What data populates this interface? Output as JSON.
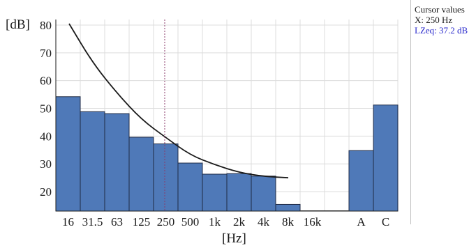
{
  "chart_data": {
    "type": "bar",
    "ylabel": "[dB]",
    "xlabel": "[Hz]",
    "ylim": [
      13,
      82
    ],
    "yticks": [
      20,
      30,
      40,
      50,
      60,
      70,
      80
    ],
    "grid": true,
    "categories": [
      "16",
      "31.5",
      "63",
      "125",
      "250",
      "500",
      "1k",
      "2k",
      "4k",
      "8k",
      "16k",
      "",
      "A",
      "C"
    ],
    "values": [
      54.2,
      48.8,
      48.1,
      39.6,
      37.2,
      30.3,
      26.3,
      26.5,
      25.6,
      15.4,
      null,
      null,
      34.8,
      51.2
    ],
    "curve": {
      "categories": [
        "16",
        "31.5",
        "63",
        "125",
        "250",
        "500",
        "1k",
        "2k",
        "4k",
        "8k"
      ],
      "values": [
        80.5,
        66.5,
        55.5,
        46,
        39.5,
        33.2,
        29.7,
        26.9,
        25.5,
        25
      ]
    },
    "cursor_category": "250"
  },
  "cursor": {
    "title": "Cursor values",
    "x": "X: 250 Hz",
    "lzeq": "LZeq: 37.2 dB"
  },
  "colors": {
    "bar": "#4f79b8",
    "bar_edge": "#1f2a44",
    "grid": "#dcdcdc",
    "curve": "#1a1a1a",
    "cursor_line": "#8a3a6a",
    "lzeq_text": "#2a2acc"
  }
}
